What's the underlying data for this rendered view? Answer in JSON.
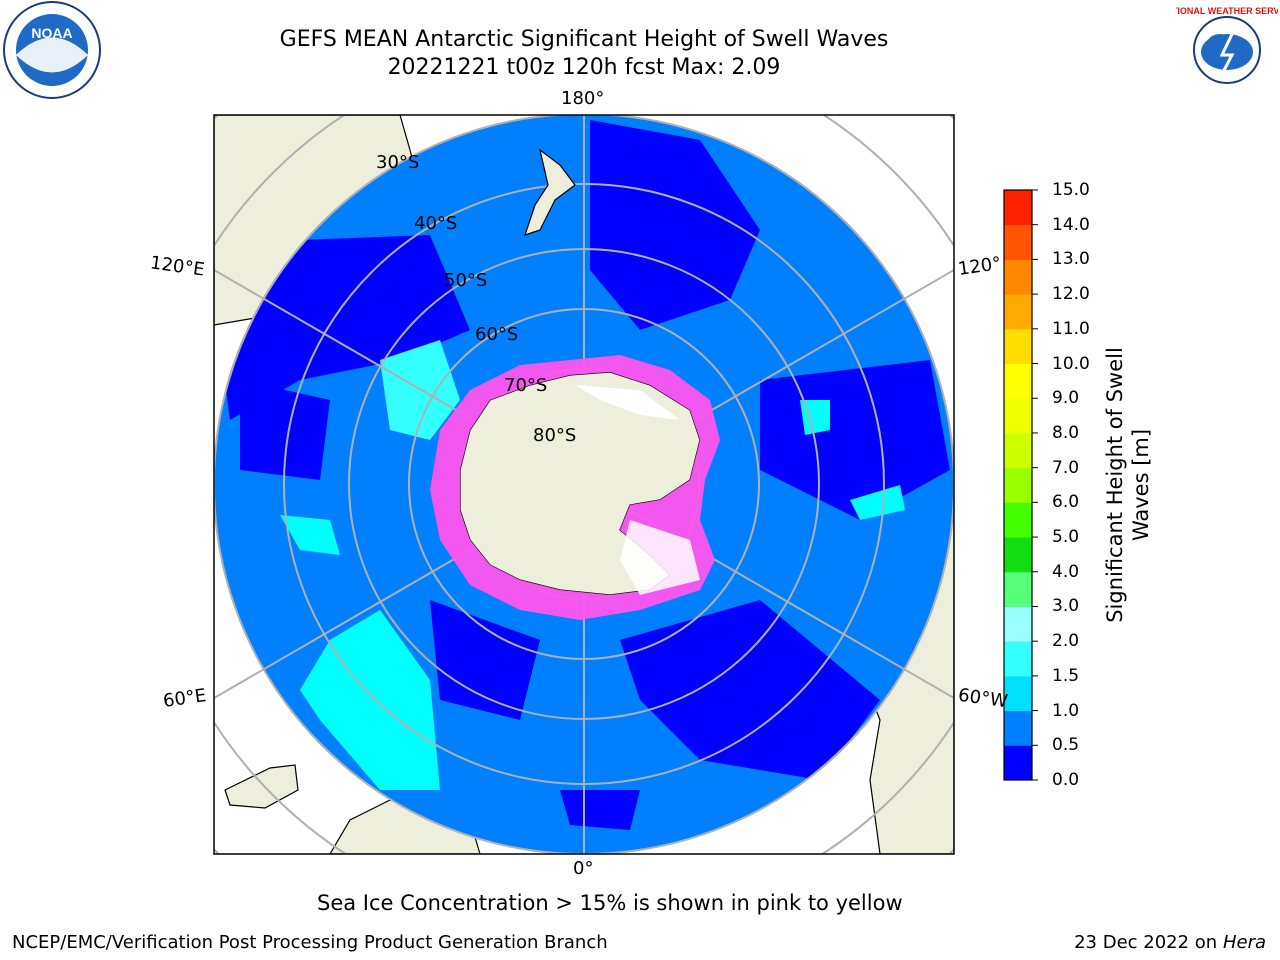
{
  "header": {
    "title_line1": "GEFS MEAN Antarctic Significant Height of Swell Waves",
    "title_line2": "20221221 t00z 120h fcst   Max: 2.09"
  },
  "logos": {
    "left": {
      "icon": "noaa-logo-icon",
      "text": "NOAA"
    },
    "right": {
      "icon": "national-weather-service-logo-icon",
      "text": "NATIONAL WEATHER SERVICE"
    }
  },
  "map": {
    "projection": "south-polar-stereographic",
    "longitude_labels": [
      "180°",
      "120°E",
      "120°",
      "60°E",
      "60°W",
      "0°"
    ],
    "latitude_labels": [
      "30°S",
      "40°S",
      "50°S",
      "60°S",
      "70°S",
      "80°S"
    ],
    "colors": {
      "land": "#eeeedd",
      "ocean_low": "#0000ff",
      "ocean_mid": "#0080ff",
      "ocean_high": "#00ffff",
      "ice": "#ff66ff",
      "grid": "#b0b0b0"
    }
  },
  "colorbar": {
    "title_line1": "Significant Height of Swell",
    "title_line2": "Waves [m]",
    "ticks": [
      "0.0",
      "0.5",
      "1.0",
      "1.5",
      "2.0",
      "3.0",
      "4.0",
      "5.0",
      "6.0",
      "7.0",
      "8.0",
      "9.0",
      "10.0",
      "11.0",
      "12.0",
      "13.0",
      "14.0",
      "15.0"
    ],
    "colors": [
      "#0000ff",
      "#0080ff",
      "#00e0ff",
      "#33ffff",
      "#99ffff",
      "#55ff77",
      "#11dd11",
      "#44ff00",
      "#99ff00",
      "#ccff00",
      "#eeff00",
      "#ffff00",
      "#ffdd00",
      "#ffaa00",
      "#ff8800",
      "#ff5500",
      "#ff2200"
    ]
  },
  "footer": {
    "note": "Sea Ice Concentration > 15% is shown in pink to yellow",
    "credit": "NCEP/EMC/Verification Post Processing Product Generation Branch",
    "date": "23 Dec 2022 on",
    "host": "Hera"
  }
}
